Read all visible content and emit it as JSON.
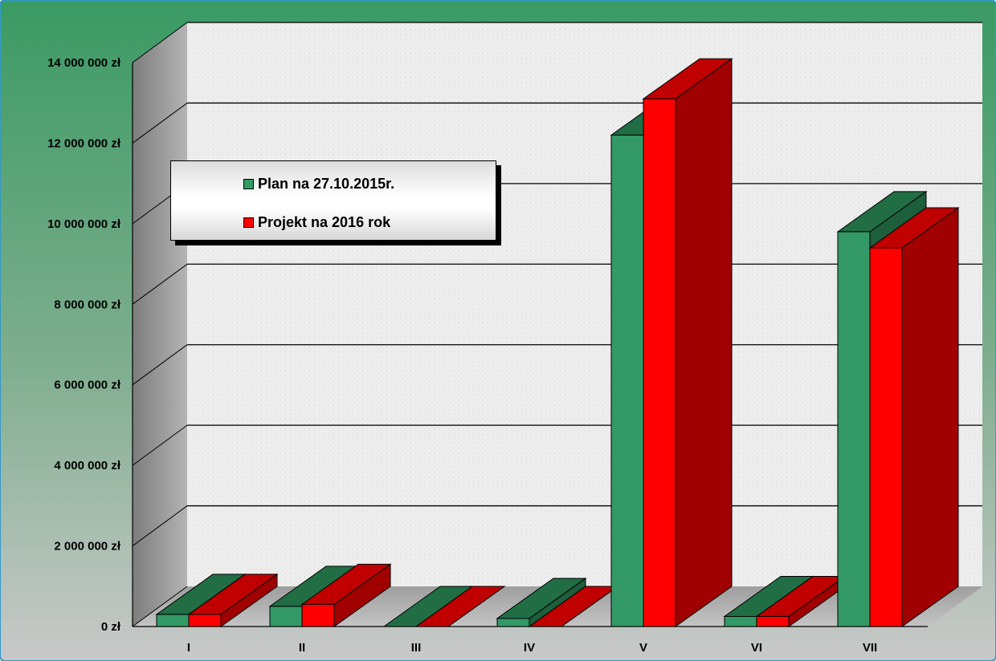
{
  "chart_data": {
    "type": "bar",
    "categories": [
      "I",
      "II",
      "III",
      "IV",
      "V",
      "VI",
      "VII"
    ],
    "series": [
      {
        "name": "Plan na 27.10.2015r.",
        "values": [
          300000,
          500000,
          0,
          200000,
          12200000,
          250000,
          9800000
        ]
      },
      {
        "name": "Projekt na 2016 rok",
        "values": [
          300000,
          550000,
          0,
          0,
          13100000,
          250000,
          9400000
        ]
      }
    ],
    "y_ticks": [
      "0 zł",
      "2 000 000 zł",
      "4 000 000 zł",
      "6 000 000 zł",
      "8 000 000 zł",
      "10 000 000 zł",
      "12 000 000 zł",
      "14 000 000 zł"
    ],
    "ylim": [
      0,
      14000000
    ],
    "title": "",
    "xlabel": "",
    "ylabel": "",
    "grid": true,
    "legend_position": "top-left",
    "colors": {
      "series1_front": "#339966",
      "series1_top": "#216e45",
      "series1_side": "#1d5e3b",
      "series2_front": "#ff0000",
      "series2_top": "#c00000",
      "series2_side": "#a00000",
      "background_top": "#3a9a63",
      "background_bottom": "#c9c9c9",
      "wall": "#eeeeee",
      "side_wall": "#9a9a9a",
      "floor": "#b0b0b0"
    }
  }
}
